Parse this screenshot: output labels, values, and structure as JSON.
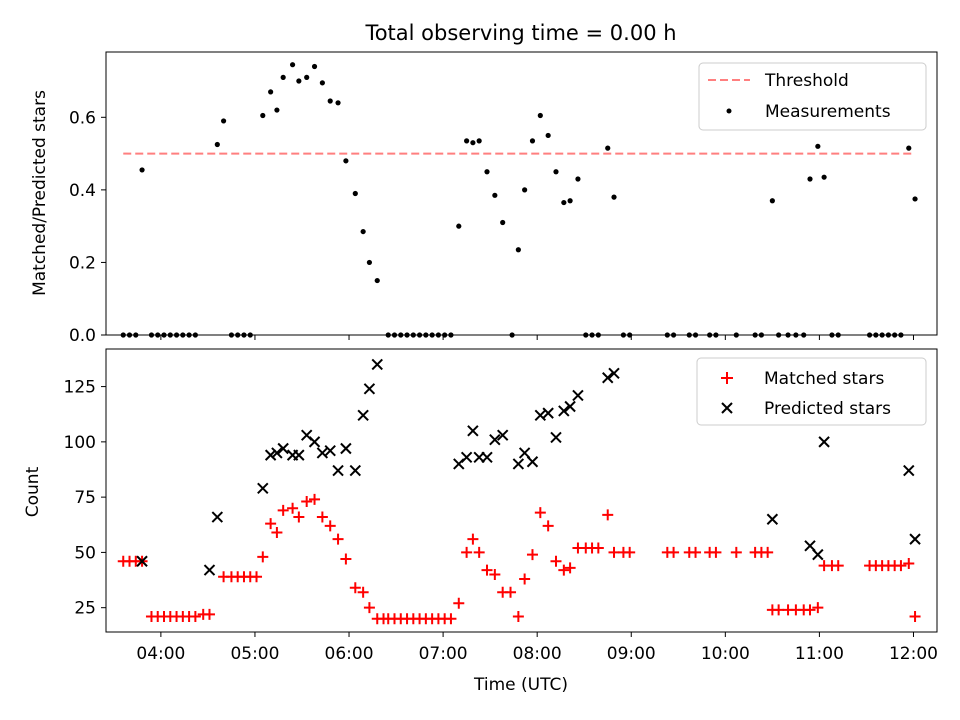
{
  "chart_data": [
    {
      "type": "scatter",
      "title": "Total observing time = 0.00 h",
      "ylabel": "Matched/Predicted stars",
      "xlim": [
        "03:25",
        "12:15"
      ],
      "ylim": [
        0,
        0.78
      ],
      "xticks": [
        "04:00",
        "05:00",
        "06:00",
        "07:00",
        "08:00",
        "09:00",
        "10:00",
        "11:00",
        "12:00"
      ],
      "yticks": [
        "0.0",
        "0.2",
        "0.4",
        "0.6"
      ],
      "legend_position": "top-right",
      "threshold": {
        "name": "Threshold",
        "value": 0.5,
        "x_from": "03:36",
        "x_to": "12:00",
        "color": "#ff7f7f",
        "style": "dashed"
      },
      "series": [
        {
          "name": "Measurements",
          "color": "#000000",
          "marker": "dot",
          "points": [
            [
              "03:36",
              0
            ],
            [
              "03:40",
              0
            ],
            [
              "03:44",
              0
            ],
            [
              "03:48",
              0.455
            ],
            [
              "03:54",
              0
            ],
            [
              "03:58",
              0
            ],
            [
              "04:02",
              0
            ],
            [
              "04:06",
              0
            ],
            [
              "04:10",
              0
            ],
            [
              "04:14",
              0
            ],
            [
              "04:18",
              0
            ],
            [
              "04:22",
              0
            ],
            [
              "04:36",
              0.525
            ],
            [
              "04:40",
              0.59
            ],
            [
              "04:45",
              0
            ],
            [
              "04:49",
              0
            ],
            [
              "04:53",
              0
            ],
            [
              "04:57",
              0
            ],
            [
              "05:05",
              0.605
            ],
            [
              "05:10",
              0.67
            ],
            [
              "05:14",
              0.62
            ],
            [
              "05:18",
              0.71
            ],
            [
              "05:24",
              0.745
            ],
            [
              "05:28",
              0.7
            ],
            [
              "05:33",
              0.71
            ],
            [
              "05:38",
              0.74
            ],
            [
              "05:43",
              0.695
            ],
            [
              "05:48",
              0.645
            ],
            [
              "05:53",
              0.64
            ],
            [
              "05:58",
              0.48
            ],
            [
              "06:04",
              0.39
            ],
            [
              "06:09",
              0.285
            ],
            [
              "06:13",
              0.2
            ],
            [
              "06:18",
              0.15
            ],
            [
              "06:25",
              0
            ],
            [
              "06:29",
              0
            ],
            [
              "06:33",
              0
            ],
            [
              "06:37",
              0
            ],
            [
              "06:41",
              0
            ],
            [
              "06:45",
              0
            ],
            [
              "06:49",
              0
            ],
            [
              "06:53",
              0
            ],
            [
              "06:57",
              0
            ],
            [
              "07:01",
              0
            ],
            [
              "07:05",
              0
            ],
            [
              "07:10",
              0.3
            ],
            [
              "07:15",
              0.535
            ],
            [
              "07:19",
              0.53
            ],
            [
              "07:23",
              0.535
            ],
            [
              "07:28",
              0.45
            ],
            [
              "07:33",
              0.385
            ],
            [
              "07:38",
              0.31
            ],
            [
              "07:44",
              0
            ],
            [
              "07:48",
              0.235
            ],
            [
              "07:52",
              0.4
            ],
            [
              "07:57",
              0.535
            ],
            [
              "08:02",
              0.605
            ],
            [
              "08:07",
              0.55
            ],
            [
              "08:12",
              0.45
            ],
            [
              "08:17",
              0.365
            ],
            [
              "08:21",
              0.37
            ],
            [
              "08:26",
              0.43
            ],
            [
              "08:31",
              0
            ],
            [
              "08:35",
              0
            ],
            [
              "08:39",
              0
            ],
            [
              "08:45",
              0.515
            ],
            [
              "08:49",
              0.38
            ],
            [
              "08:55",
              0
            ],
            [
              "08:59",
              0
            ],
            [
              "09:23",
              0
            ],
            [
              "09:27",
              0
            ],
            [
              "09:37",
              0
            ],
            [
              "09:41",
              0
            ],
            [
              "09:50",
              0
            ],
            [
              "09:54",
              0
            ],
            [
              "10:07",
              0
            ],
            [
              "10:19",
              0
            ],
            [
              "10:23",
              0
            ],
            [
              "10:30",
              0.37
            ],
            [
              "10:34",
              0
            ],
            [
              "10:40",
              0
            ],
            [
              "10:45",
              0
            ],
            [
              "10:50",
              0
            ],
            [
              "10:54",
              0.43
            ],
            [
              "10:59",
              0.52
            ],
            [
              "11:03",
              0.435
            ],
            [
              "11:08",
              0
            ],
            [
              "11:12",
              0
            ],
            [
              "11:32",
              0
            ],
            [
              "11:36",
              0
            ],
            [
              "11:40",
              0
            ],
            [
              "11:44",
              0
            ],
            [
              "11:48",
              0
            ],
            [
              "11:52",
              0
            ],
            [
              "11:57",
              0.515
            ],
            [
              "12:01",
              0.375
            ]
          ]
        }
      ]
    },
    {
      "type": "scatter",
      "xlabel": "Time (UTC)",
      "ylabel": "Count",
      "xlim": [
        "03:25",
        "12:15"
      ],
      "ylim": [
        14,
        142
      ],
      "xticks": [
        "04:00",
        "05:00",
        "06:00",
        "07:00",
        "08:00",
        "09:00",
        "10:00",
        "11:00",
        "12:00"
      ],
      "yticks": [
        "25",
        "50",
        "75",
        "100",
        "125"
      ],
      "legend_position": "top-right",
      "series": [
        {
          "name": "Matched stars",
          "color": "#ff0000",
          "marker": "plus",
          "points": [
            [
              "03:36",
              46
            ],
            [
              "03:40",
              46
            ],
            [
              "03:44",
              46
            ],
            [
              "03:48",
              46
            ],
            [
              "03:54",
              21
            ],
            [
              "03:58",
              21
            ],
            [
              "04:02",
              21
            ],
            [
              "04:06",
              21
            ],
            [
              "04:10",
              21
            ],
            [
              "04:14",
              21
            ],
            [
              "04:18",
              21
            ],
            [
              "04:22",
              21
            ],
            [
              "04:27",
              22
            ],
            [
              "04:31",
              22
            ],
            [
              "04:40",
              39
            ],
            [
              "04:45",
              39
            ],
            [
              "04:49",
              39
            ],
            [
              "04:53",
              39
            ],
            [
              "04:57",
              39
            ],
            [
              "05:01",
              39
            ],
            [
              "05:05",
              48
            ],
            [
              "05:10",
              63
            ],
            [
              "05:14",
              59
            ],
            [
              "05:18",
              69
            ],
            [
              "05:24",
              70
            ],
            [
              "05:28",
              66
            ],
            [
              "05:33",
              73
            ],
            [
              "05:38",
              74
            ],
            [
              "05:43",
              66
            ],
            [
              "05:48",
              62
            ],
            [
              "05:53",
              56
            ],
            [
              "05:58",
              47
            ],
            [
              "06:04",
              34
            ],
            [
              "06:09",
              32
            ],
            [
              "06:13",
              25
            ],
            [
              "06:18",
              20
            ],
            [
              "06:22",
              20
            ],
            [
              "06:25",
              20
            ],
            [
              "06:29",
              20
            ],
            [
              "06:33",
              20
            ],
            [
              "06:37",
              20
            ],
            [
              "06:41",
              20
            ],
            [
              "06:45",
              20
            ],
            [
              "06:49",
              20
            ],
            [
              "06:53",
              20
            ],
            [
              "06:57",
              20
            ],
            [
              "07:01",
              20
            ],
            [
              "07:05",
              20
            ],
            [
              "07:10",
              27
            ],
            [
              "07:15",
              50
            ],
            [
              "07:19",
              56
            ],
            [
              "07:23",
              50
            ],
            [
              "07:28",
              42
            ],
            [
              "07:33",
              40
            ],
            [
              "07:38",
              32
            ],
            [
              "07:43",
              32
            ],
            [
              "07:48",
              21
            ],
            [
              "07:52",
              38
            ],
            [
              "07:57",
              49
            ],
            [
              "08:02",
              68
            ],
            [
              "08:07",
              62
            ],
            [
              "08:12",
              46
            ],
            [
              "08:17",
              42
            ],
            [
              "08:21",
              43
            ],
            [
              "08:26",
              52
            ],
            [
              "08:31",
              52
            ],
            [
              "08:35",
              52
            ],
            [
              "08:39",
              52
            ],
            [
              "08:45",
              67
            ],
            [
              "08:49",
              50
            ],
            [
              "08:55",
              50
            ],
            [
              "08:59",
              50
            ],
            [
              "09:23",
              50
            ],
            [
              "09:27",
              50
            ],
            [
              "09:37",
              50
            ],
            [
              "09:41",
              50
            ],
            [
              "09:50",
              50
            ],
            [
              "09:54",
              50
            ],
            [
              "10:07",
              50
            ],
            [
              "10:19",
              50
            ],
            [
              "10:23",
              50
            ],
            [
              "10:27",
              50
            ],
            [
              "10:30",
              24
            ],
            [
              "10:34",
              24
            ],
            [
              "10:40",
              24
            ],
            [
              "10:45",
              24
            ],
            [
              "10:50",
              24
            ],
            [
              "10:54",
              24
            ],
            [
              "10:59",
              25
            ],
            [
              "11:03",
              44
            ],
            [
              "11:08",
              44
            ],
            [
              "11:12",
              44
            ],
            [
              "11:32",
              44
            ],
            [
              "11:36",
              44
            ],
            [
              "11:40",
              44
            ],
            [
              "11:44",
              44
            ],
            [
              "11:48",
              44
            ],
            [
              "11:52",
              44
            ],
            [
              "11:57",
              45
            ],
            [
              "12:01",
              21
            ]
          ]
        },
        {
          "name": "Predicted stars",
          "color": "#000000",
          "marker": "x",
          "points": [
            [
              "03:48",
              46
            ],
            [
              "04:31",
              42
            ],
            [
              "04:36",
              66
            ],
            [
              "05:05",
              79
            ],
            [
              "05:10",
              94
            ],
            [
              "05:14",
              95
            ],
            [
              "05:18",
              97
            ],
            [
              "05:24",
              94
            ],
            [
              "05:28",
              94
            ],
            [
              "05:33",
              103
            ],
            [
              "05:38",
              100
            ],
            [
              "05:43",
              95
            ],
            [
              "05:48",
              96
            ],
            [
              "05:53",
              87
            ],
            [
              "05:58",
              97
            ],
            [
              "06:04",
              87
            ],
            [
              "06:09",
              112
            ],
            [
              "06:13",
              124
            ],
            [
              "06:18",
              135
            ],
            [
              "07:10",
              90
            ],
            [
              "07:15",
              93
            ],
            [
              "07:19",
              105
            ],
            [
              "07:23",
              93
            ],
            [
              "07:28",
              93
            ],
            [
              "07:33",
              101
            ],
            [
              "07:38",
              103
            ],
            [
              "07:48",
              90
            ],
            [
              "07:52",
              95
            ],
            [
              "07:57",
              91
            ],
            [
              "08:02",
              112
            ],
            [
              "08:07",
              113
            ],
            [
              "08:12",
              102
            ],
            [
              "08:17",
              114
            ],
            [
              "08:21",
              116
            ],
            [
              "08:26",
              121
            ],
            [
              "08:45",
              129
            ],
            [
              "08:49",
              131
            ],
            [
              "10:30",
              65
            ],
            [
              "10:54",
              53
            ],
            [
              "10:59",
              49
            ],
            [
              "11:03",
              100
            ],
            [
              "11:57",
              87
            ],
            [
              "12:01",
              56
            ]
          ]
        }
      ]
    }
  ]
}
